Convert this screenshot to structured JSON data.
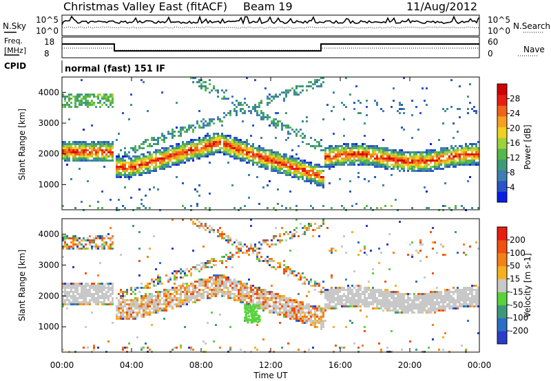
{
  "header": {
    "title": "Christmas Valley East (fitACF)",
    "beam": "Beam 19",
    "date": "11/Aug/2012"
  },
  "noise_panel": {
    "left_label": "N.Sky",
    "left_ticks": [
      "10^5",
      "10^0"
    ],
    "right_ticks": [
      "10^5",
      "10^0"
    ],
    "right_label": "N.Search"
  },
  "freq_panel": {
    "left_label_1": "Freq.",
    "left_label_2": "[MHz]",
    "left_ticks": [
      "18",
      "8"
    ],
    "right_ticks": [
      "60",
      "0"
    ],
    "right_label": "Nave"
  },
  "cpid": {
    "label": "CPID",
    "mode": "normal (fast) 151 IF"
  },
  "chart_data": [
    {
      "type": "heatmap",
      "panel": "power",
      "ylabel": "Slant Range [km]",
      "yticks": [
        1000,
        2000,
        3000,
        4000
      ],
      "ylim": [
        180,
        4500
      ],
      "xlim": [
        0,
        24
      ],
      "colorbar": {
        "label": "Power [dB]",
        "ticks": [
          4,
          8,
          12,
          16,
          20,
          24,
          28
        ],
        "colors": [
          "#0a1ee6",
          "#2a55c8",
          "#3c7fb0",
          "#3f9a78",
          "#56b84a",
          "#9ed23a",
          "#f0d020",
          "#f5a020",
          "#f06418",
          "#e61e10",
          "#d00000"
        ]
      },
      "bands": [
        {
          "t0": 0.0,
          "t1": 2.9,
          "r0": 1800,
          "r1": 2400,
          "peak": 28
        },
        {
          "t0": 0.0,
          "t1": 2.9,
          "r0": 3500,
          "r1": 4000,
          "peak": 12
        },
        {
          "t0": 3.0,
          "t1": 15.0,
          "r0": 1300,
          "r1": 2300,
          "peak": 26
        },
        {
          "t0": 15.0,
          "t1": 24.0,
          "r0": 1650,
          "r1": 2300,
          "peak": 28
        }
      ]
    },
    {
      "type": "heatmap",
      "panel": "velocity",
      "ylabel": "Slant Range [km]",
      "xlabel": "Time UT",
      "yticks": [
        1000,
        2000,
        3000,
        4000
      ],
      "ylim": [
        180,
        4500
      ],
      "xlim": [
        0,
        24
      ],
      "xticks": [
        "00:00",
        "04:00",
        "08:00",
        "12:00",
        "16:00",
        "20:00",
        "00:00"
      ],
      "colorbar": {
        "label": "Velocity [m s-1]",
        "ticks": [
          200,
          100,
          50,
          15,
          -15,
          -50,
          -100,
          -200
        ],
        "colors": [
          "#2a3cc8",
          "#2a6ec8",
          "#3c9a78",
          "#5ad23c",
          "#c8c8c8",
          "#f5b020",
          "#f58018",
          "#f05010",
          "#e61e10"
        ]
      }
    }
  ]
}
